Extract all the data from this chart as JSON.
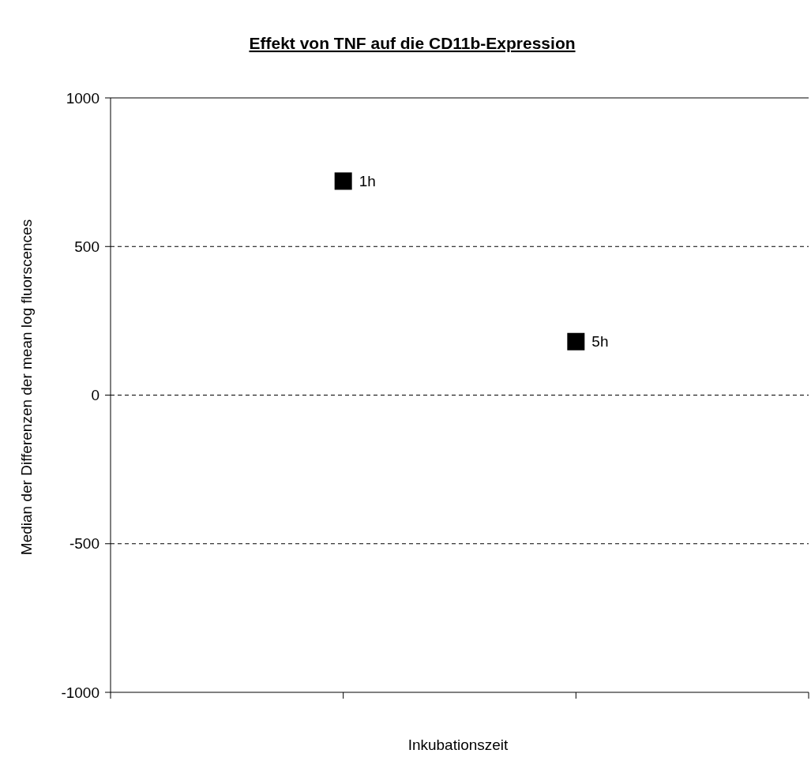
{
  "chart_data": {
    "type": "scatter",
    "title": "Effekt von TNF auf die CD11b-Expression",
    "xlabel": "Inkubationszeit",
    "ylabel": "Median der Differenzen der mean log fluorscences",
    "categories": [
      null,
      null,
      null,
      null
    ],
    "values": [
      null,
      720,
      180,
      null
    ],
    "annotations": [
      "1h",
      "5h"
    ],
    "color": "#000000",
    "marker": "square",
    "ylim": [
      -1000,
      1000
    ],
    "yticks": [
      -1000,
      -500,
      0,
      500,
      1000
    ],
    "grid": "y",
    "tick_labels": "y"
  }
}
